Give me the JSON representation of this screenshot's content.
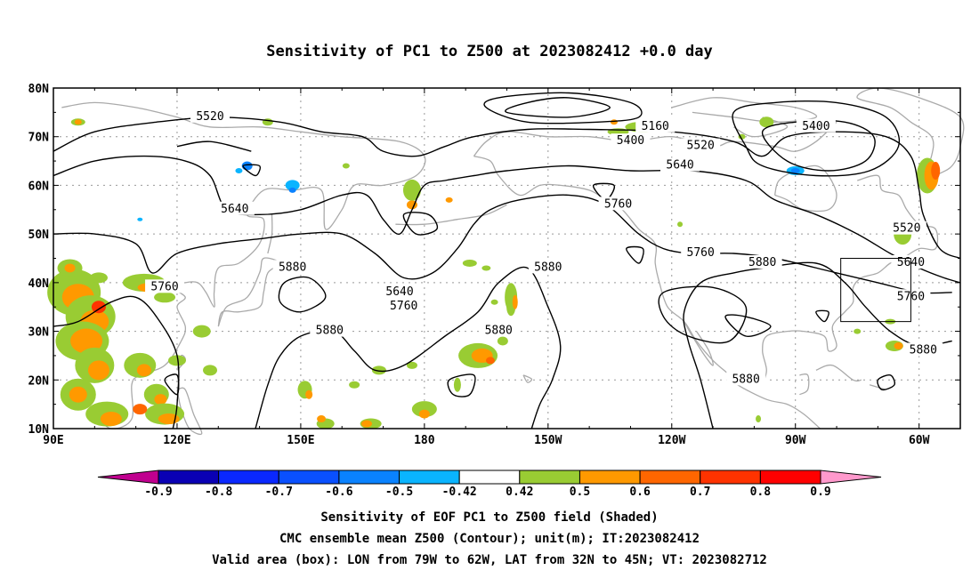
{
  "title": "Sensitivity of PC1 to Z500 at 2023082412 +0.0 day",
  "lon_labels": [
    "90E",
    "120E",
    "150E",
    "180",
    "150W",
    "120W",
    "90W",
    "60W"
  ],
  "lat_labels": [
    "80N",
    "70N",
    "60N",
    "50N",
    "40N",
    "30N",
    "20N",
    "10N"
  ],
  "contour_labels": [
    {
      "text": "5520",
      "lon": 128,
      "lat": 74
    },
    {
      "text": "5160",
      "lon": -124,
      "lat": 72
    },
    {
      "text": "5400",
      "lon": -130,
      "lat": 69
    },
    {
      "text": "5520",
      "lon": -113,
      "lat": 68
    },
    {
      "text": "5640",
      "lon": -118,
      "lat": 64
    },
    {
      "text": "5400",
      "lon": -85,
      "lat": 72
    },
    {
      "text": "5760",
      "lon": -133,
      "lat": 56
    },
    {
      "text": "5640",
      "lon": 134,
      "lat": 55
    },
    {
      "text": "5520",
      "lon": -63,
      "lat": 51
    },
    {
      "text": "5880",
      "lon": 148,
      "lat": 43
    },
    {
      "text": "5640",
      "lon": 174,
      "lat": 38
    },
    {
      "text": "5760",
      "lon": 175,
      "lat": 35
    },
    {
      "text": "5880",
      "lon": -150,
      "lat": 43
    },
    {
      "text": "5760",
      "lon": -113,
      "lat": 46
    },
    {
      "text": "5880",
      "lon": -98,
      "lat": 44
    },
    {
      "text": "5640",
      "lon": -62,
      "lat": 44
    },
    {
      "text": "5760",
      "lon": -62,
      "lat": 37
    },
    {
      "text": "5760",
      "lon": 117,
      "lat": 39
    },
    {
      "text": "5880",
      "lon": 157,
      "lat": 30
    },
    {
      "text": "5880",
      "lon": -162,
      "lat": 30
    },
    {
      "text": "5880",
      "lon": -59,
      "lat": 26
    },
    {
      "text": "5880",
      "lon": -102,
      "lat": 20
    }
  ],
  "valid_box": {
    "lon_from": -79,
    "lon_to": -62,
    "lat_from": 32,
    "lat_to": 45
  },
  "colorbar": {
    "labels": [
      "-0.9",
      "-0.8",
      "-0.7",
      "-0.6",
      "-0.5",
      "-0.42",
      "0.42",
      "0.5",
      "0.6",
      "0.7",
      "0.8",
      "0.9"
    ],
    "colors": [
      "#c0008f",
      "#0a00b4",
      "#0a28ff",
      "#0a50ff",
      "#0a82ff",
      "#0ab4ff",
      "#ffffff",
      "#99cc33",
      "#ff9900",
      "#ff6600",
      "#ff3300",
      "#ff0000",
      "#ff99cc"
    ]
  },
  "caption": {
    "line1": "Sensitivity of EOF PC1 to Z500 field (Shaded)",
    "line2": "CMC ensemble mean Z500 (Contour); unit(m); IT:2023082412",
    "line3": "Valid area (box): LON from 79W to 62W, LAT from 32N to 45N; VT: 2023082712"
  }
}
